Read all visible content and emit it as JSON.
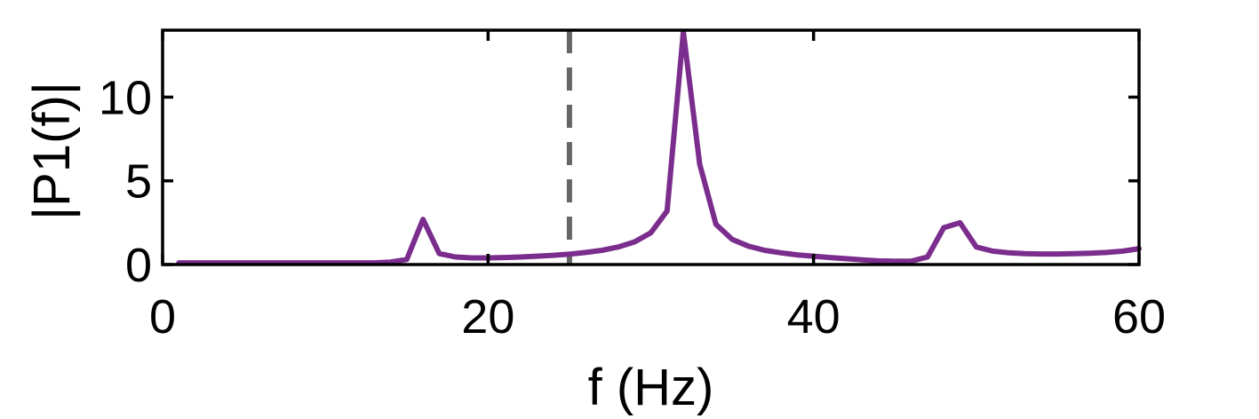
{
  "chart_data": {
    "type": "line",
    "title": "",
    "xlabel": "f (Hz)",
    "ylabel": "|P1(f)|",
    "xlim": [
      0,
      60
    ],
    "ylim": [
      0,
      14
    ],
    "xticks": [
      0,
      20,
      40,
      60
    ],
    "yticks": [
      0,
      5,
      10
    ],
    "xtick_labels": [
      "0",
      "20",
      "40",
      "60"
    ],
    "ytick_labels": [
      "0",
      "5",
      "10"
    ],
    "grid": false,
    "legend": "none",
    "series": [
      {
        "color": "#7b2d8e",
        "x": [
          1,
          2,
          3,
          4,
          5,
          6,
          7,
          8,
          9,
          10,
          11,
          12,
          13,
          14,
          15,
          16,
          17,
          18,
          19,
          20,
          21,
          22,
          23,
          24,
          25,
          26,
          27,
          28,
          29,
          30,
          31,
          32,
          33,
          34,
          35,
          36,
          37,
          38,
          39,
          40,
          41,
          42,
          43,
          44,
          45,
          46,
          47,
          48,
          49,
          50,
          51,
          52,
          53,
          54,
          55,
          56,
          57,
          58,
          59,
          60
        ],
        "y": [
          0.1,
          0.1,
          0.1,
          0.1,
          0.1,
          0.1,
          0.1,
          0.1,
          0.1,
          0.1,
          0.1,
          0.1,
          0.1,
          0.15,
          0.3,
          2.7,
          0.65,
          0.45,
          0.4,
          0.4,
          0.42,
          0.45,
          0.5,
          0.55,
          0.62,
          0.72,
          0.85,
          1.05,
          1.35,
          1.9,
          3.2,
          13.9,
          6.0,
          2.4,
          1.5,
          1.1,
          0.85,
          0.7,
          0.58,
          0.5,
          0.42,
          0.35,
          0.28,
          0.22,
          0.2,
          0.2,
          0.45,
          2.2,
          2.5,
          1.05,
          0.8,
          0.7,
          0.65,
          0.63,
          0.63,
          0.65,
          0.68,
          0.72,
          0.8,
          0.95
        ]
      }
    ],
    "reference_line": {
      "x": 25,
      "style": "dashed",
      "color": "#666666"
    }
  }
}
